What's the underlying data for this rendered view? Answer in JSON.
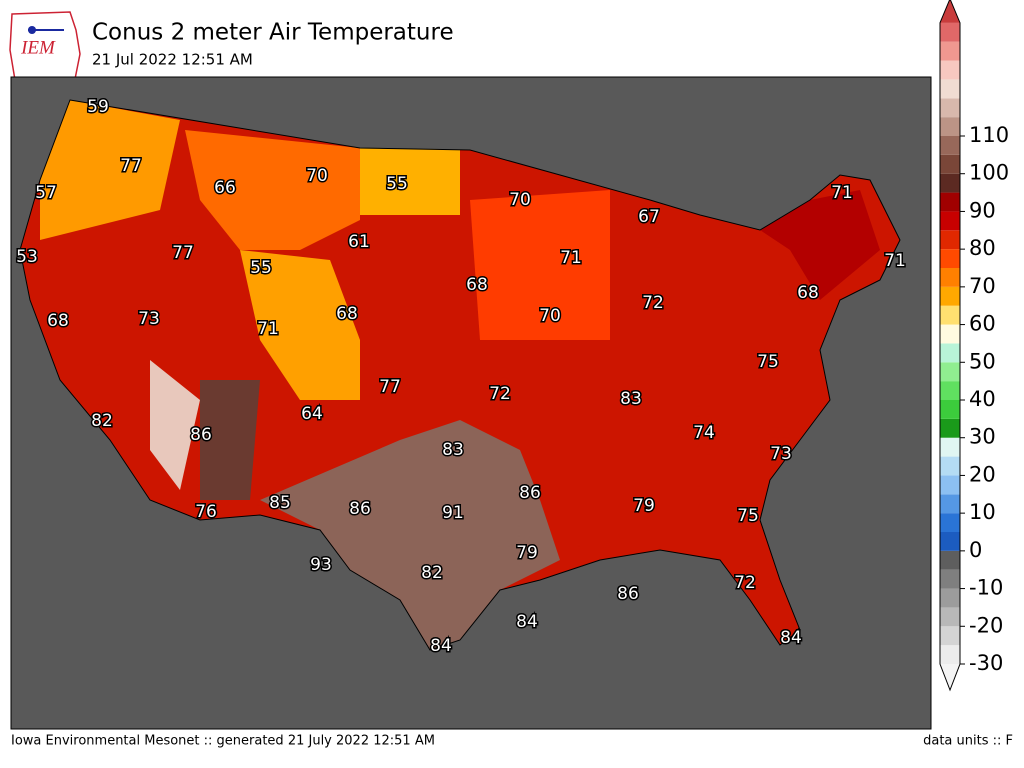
{
  "logo": "IEM",
  "title": "Conus 2 meter Air Temperature",
  "subtitle": "21 Jul 2022 12:51 AM",
  "footer_left": "Iowa Environmental Mesonet :: generated 21 July 2022 12:51 AM",
  "footer_right": "data units :: F",
  "colorbar": {
    "ticks": [
      -30,
      -20,
      -10,
      0,
      10,
      20,
      30,
      40,
      50,
      60,
      70,
      80,
      90,
      100,
      110
    ],
    "colors": [
      "#ececec",
      "#d4d4d4",
      "#b8b8b8",
      "#9c9c9c",
      "#7f7f7f",
      "#5e5e5e",
      "#1c5cc0",
      "#2a74d6",
      "#5598e4",
      "#8cc0f2",
      "#b4dcf4",
      "#e0f6f2",
      "#1a9a1a",
      "#3ccc3c",
      "#60e060",
      "#90ee90",
      "#b8f4d8",
      "#fffbe0",
      "#ffe070",
      "#ffa800",
      "#ff8000",
      "#ff4a00",
      "#e02800",
      "#c80000",
      "#a00000",
      "#5c2a22",
      "#7a4638",
      "#98685a",
      "#bc9486",
      "#d8b8ac",
      "#f0dcd2",
      "#f8c8c0",
      "#f09890",
      "#e06868"
    ],
    "under": "#f4f4f4",
    "over": "#c83c3c"
  },
  "station_labels": [
    59,
    77,
    57,
    66,
    70,
    55,
    70,
    71,
    67,
    61,
    77,
    53,
    55,
    71,
    71,
    68,
    68,
    68,
    73,
    68,
    70,
    72,
    71,
    75,
    77,
    72,
    83,
    82,
    86,
    64,
    74,
    83,
    73,
    86,
    85,
    86,
    91,
    79,
    76,
    75,
    79,
    93,
    82,
    72,
    86,
    84,
    84,
    84
  ]
}
